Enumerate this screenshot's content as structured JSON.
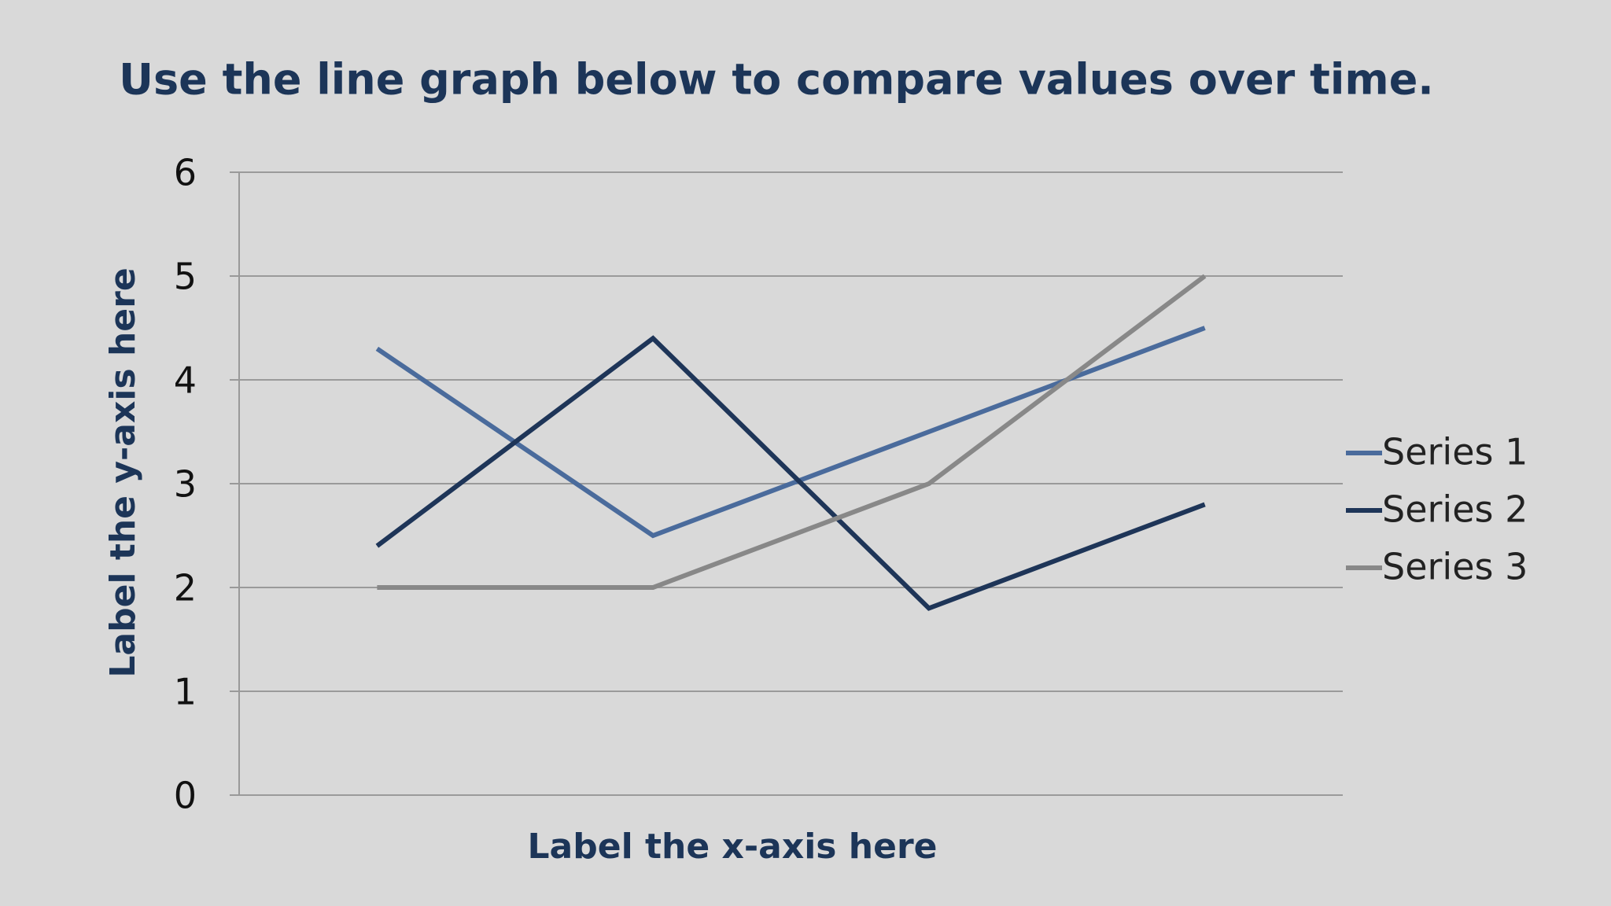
{
  "chart_data": {
    "type": "line",
    "title": "Use the line graph below to compare values over time.",
    "x_label": "Label the x-axis here",
    "y_label": "Label the y-axis here",
    "categories": [
      null,
      null,
      null,
      null
    ],
    "series": [
      {
        "name": "Series 1",
        "color": "#4a6b9c",
        "values": [
          4.3,
          2.5,
          3.5,
          4.5
        ]
      },
      {
        "name": "Series 2",
        "color": "#1e3558",
        "values": [
          2.4,
          4.4,
          1.8,
          2.8
        ]
      },
      {
        "name": "Series 3",
        "color": "#888888",
        "values": [
          2,
          2,
          3,
          5
        ]
      }
    ],
    "ylim": [
      0,
      6
    ],
    "yticks": [
      0,
      1,
      2,
      3,
      4,
      5,
      6
    ],
    "grid": true,
    "legend": "right"
  }
}
